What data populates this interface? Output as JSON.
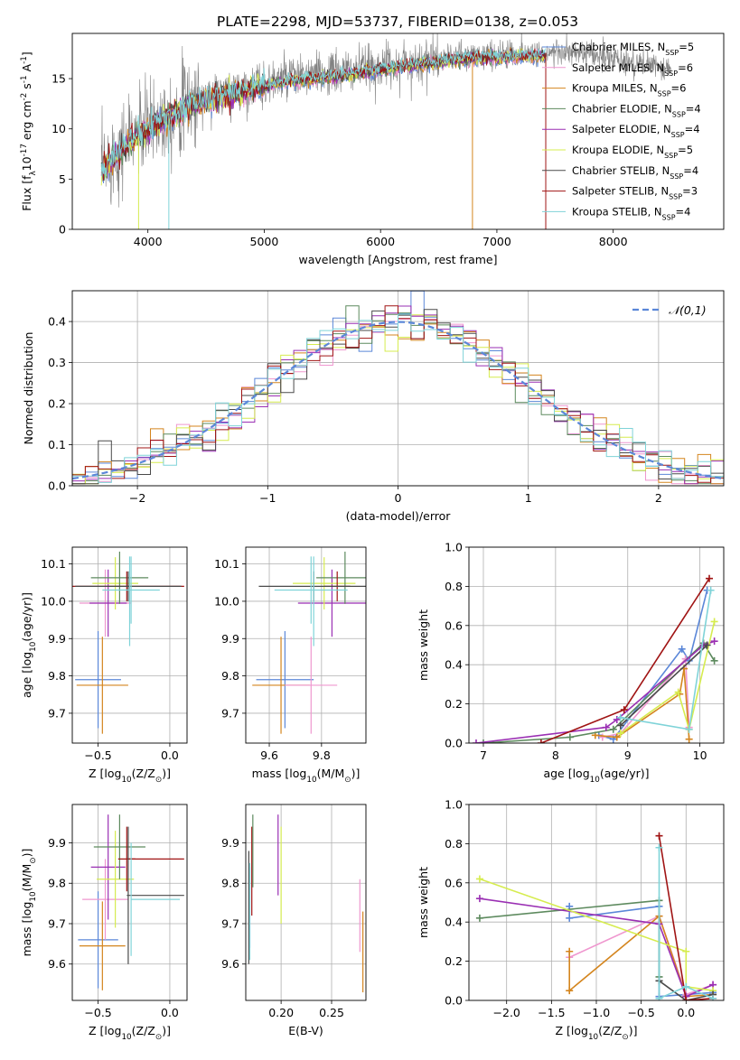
{
  "figure": {
    "title": "PLATE=2298, MJD=53737, FIBERID=0138, z=0.053"
  },
  "series_styles": [
    {
      "name": "Chabrier MILES",
      "label": "Chabrier MILES, N_{SSP}=5",
      "color": "#5b87d8"
    },
    {
      "name": "Salpeter MILES",
      "label": "Salpeter MILES, N_{SSP}=6",
      "color": "#ef97cf"
    },
    {
      "name": "Kroupa MILES",
      "label": "Kroupa MILES, N_{SSP}=6",
      "color": "#d4851e"
    },
    {
      "name": "Chabrier ELODIE",
      "label": "Chabrier ELODIE, N_{SSP}=4",
      "color": "#5d8a5e"
    },
    {
      "name": "Salpeter ELODIE",
      "label": "Salpeter ELODIE, N_{SSP}=4",
      "color": "#9a2fb3"
    },
    {
      "name": "Kroupa ELODIE",
      "label": "Kroupa ELODIE, N_{SSP}=5",
      "color": "#d6ec4f"
    },
    {
      "name": "Chabrier STELIB",
      "label": "Chabrier STELIB, N_{SSP}=4",
      "color": "#4a4a4a"
    },
    {
      "name": "Salpeter STELIB",
      "label": "Salpeter STELIB, N_{SSP}=3",
      "color": "#a01414"
    },
    {
      "name": "Kroupa STELIB",
      "label": "Kroupa STELIB, N_{SSP}=4",
      "color": "#7fd3d8"
    }
  ],
  "chart_data": [
    {
      "id": "spectrum",
      "type": "line",
      "xlabel": "wavelength [Angstrom, rest frame]",
      "ylabel": "Flux [f_λ10^{-17} erg cm^{-2} s^{-1} A^{-1}]",
      "xlim": [
        3350,
        8950
      ],
      "ylim": [
        0,
        19.5
      ],
      "xticks": [
        4000,
        5000,
        6000,
        7000,
        8000
      ],
      "yticks": [
        0,
        5,
        10,
        15
      ],
      "data_series": {
        "name": "data",
        "color": "#808080",
        "x_range": [
          3600,
          8500
        ],
        "continuum": [
          [
            3600,
            6
          ],
          [
            3700,
            7.5
          ],
          [
            3900,
            9.5
          ],
          [
            4100,
            11
          ],
          [
            4400,
            12.8
          ],
          [
            4800,
            14
          ],
          [
            5200,
            15
          ],
          [
            5600,
            15.5
          ],
          [
            6000,
            16.2
          ],
          [
            6400,
            16.8
          ],
          [
            6800,
            17.3
          ],
          [
            7200,
            17.5
          ],
          [
            7600,
            17.6
          ],
          [
            8000,
            17
          ],
          [
            8300,
            16.3
          ],
          [
            8500,
            15.8
          ]
        ]
      },
      "model_x_range": [
        3600,
        7420
      ],
      "legend_position": "upper right",
      "grid": false
    },
    {
      "id": "residuals",
      "type": "histogram",
      "xlabel": "(data-model)/error",
      "ylabel": "Normed distribution",
      "xlim": [
        -2.5,
        2.5
      ],
      "ylim": [
        0,
        0.475
      ],
      "xticks": [
        -2,
        -1,
        0,
        1,
        2
      ],
      "yticks": [
        0.0,
        0.1,
        0.2,
        0.3,
        0.4
      ],
      "bin_width": 0.1,
      "reference": {
        "label": "𝒩(0,1)",
        "mean": 0,
        "std": 1,
        "color": "#5b87d8"
      },
      "legend_position": "upper right",
      "grid": true
    },
    {
      "id": "z-age",
      "type": "errorbar",
      "xlabel": "Z [log_{10}(Z/Z_⊙)]",
      "ylabel": "age  [log_{10}(age/yr)]",
      "xlim": [
        -0.68,
        0.12
      ],
      "ylim": [
        9.62,
        10.145
      ],
      "xticks": [
        -0.5,
        0.0
      ],
      "yticks": [
        9.7,
        9.8,
        9.9,
        10.0,
        10.1
      ],
      "points": [
        {
          "series": "Chabrier MILES",
          "x": -0.5,
          "xerr": 0.16,
          "y": 9.79,
          "yerr": 0.13
        },
        {
          "series": "Kroupa MILES",
          "x": -0.47,
          "xerr": 0.18,
          "y": 9.775,
          "yerr": 0.13
        },
        {
          "series": "Salpeter MILES",
          "x": -0.45,
          "xerr": 0.18,
          "y": 9.995,
          "yerr": 0.09
        },
        {
          "series": "Salpeter ELODIE",
          "x": -0.43,
          "xerr": 0.13,
          "y": 9.995,
          "yerr": 0.09
        },
        {
          "series": "Kroupa ELODIE",
          "x": -0.38,
          "xerr": 0.16,
          "y": 10.048,
          "yerr": 0.07
        },
        {
          "series": "Chabrier ELODIE",
          "x": -0.35,
          "xerr": 0.2,
          "y": 10.063,
          "yerr": 0.07
        },
        {
          "series": "Salpeter STELIB",
          "x": -0.3,
          "xerr": 0.4,
          "y": 10.04,
          "yerr": 0.04
        },
        {
          "series": "Chabrier STELIB",
          "x": -0.29,
          "xerr": 0.37,
          "y": 10.04,
          "yerr": 0.04
        },
        {
          "series": "Kroupa STELIB",
          "x": -0.27,
          "xerr": 0.2,
          "y": 10.03,
          "yerr": 0.09
        },
        {
          "series": "Kroupa STELIB",
          "x": -0.28,
          "xerr": 0.0,
          "y": 10.0,
          "yerr": 0.12
        }
      ],
      "grid": true
    },
    {
      "id": "mass-age",
      "type": "errorbar",
      "xlabel": "mass [log_{10}(M/M_⊙)]",
      "ylabel": "",
      "xlim": [
        9.51,
        9.97
      ],
      "ylim": [
        9.62,
        10.145
      ],
      "xticks": [
        9.6,
        9.8
      ],
      "yticks": [
        9.7,
        9.8,
        9.9,
        10.0,
        10.1
      ],
      "points": [
        {
          "series": "Chabrier MILES",
          "x": 9.66,
          "xerr": 0.11,
          "y": 9.79,
          "yerr": 0.13
        },
        {
          "series": "Kroupa MILES",
          "x": 9.645,
          "xerr": 0.11,
          "y": 9.775,
          "yerr": 0.13
        },
        {
          "series": "Salpeter MILES",
          "x": 9.76,
          "xerr": 0.1,
          "y": 9.775,
          "yerr": 0.13
        },
        {
          "series": "Salpeter ELODIE",
          "x": 9.84,
          "xerr": 0.13,
          "y": 9.995,
          "yerr": 0.09
        },
        {
          "series": "Kroupa ELODIE",
          "x": 9.81,
          "xerr": 0.12,
          "y": 10.048,
          "yerr": 0.07
        },
        {
          "series": "Chabrier ELODIE",
          "x": 9.89,
          "xerr": 0.11,
          "y": 10.063,
          "yerr": 0.07
        },
        {
          "series": "Salpeter STELIB",
          "x": 9.86,
          "xerr": 0.05,
          "y": 10.04,
          "yerr": 0.04
        },
        {
          "series": "Chabrier STELIB",
          "x": 9.77,
          "xerr": 0.21,
          "y": 10.04,
          "yerr": 0.04
        },
        {
          "series": "Kroupa STELIB",
          "x": 9.76,
          "xerr": 0.14,
          "y": 10.03,
          "yerr": 0.09
        },
        {
          "series": "Kroupa STELIB",
          "x": 9.77,
          "xerr": 0.0,
          "y": 10.0,
          "yerr": 0.12
        }
      ],
      "grid": true
    },
    {
      "id": "weights-age",
      "type": "line",
      "xlabel": "age  [log_{10}(age/yr)]",
      "ylabel": "mass weight",
      "xlim": [
        6.8,
        10.33
      ],
      "ylim": [
        0,
        1.0
      ],
      "xticks": [
        7,
        8,
        9,
        10
      ],
      "yticks": [
        0.0,
        0.2,
        0.4,
        0.6,
        0.8,
        1.0
      ],
      "series": [
        {
          "name": "Chabrier MILES",
          "points": [
            [
              8.6,
              0.04
            ],
            [
              8.8,
              0.02
            ],
            [
              9.75,
              0.48
            ],
            [
              9.85,
              0.42
            ],
            [
              10.1,
              0.78
            ]
          ]
        },
        {
          "name": "Salpeter MILES",
          "points": [
            [
              8.65,
              0.03
            ],
            [
              8.9,
              0.05
            ],
            [
              9.8,
              0.43
            ],
            [
              9.85,
              0.08
            ]
          ]
        },
        {
          "name": "Kroupa MILES",
          "points": [
            [
              8.55,
              0.04
            ],
            [
              8.85,
              0.03
            ],
            [
              9.72,
              0.25
            ],
            [
              9.78,
              0.38
            ],
            [
              9.85,
              0.02
            ]
          ]
        },
        {
          "name": "Chabrier ELODIE",
          "points": [
            [
              7.0,
              0.0
            ],
            [
              8.2,
              0.03
            ],
            [
              8.8,
              0.07
            ],
            [
              10.05,
              0.51
            ],
            [
              10.2,
              0.42
            ]
          ]
        },
        {
          "name": "Salpeter ELODIE",
          "points": [
            [
              6.9,
              0.0
            ],
            [
              8.7,
              0.08
            ],
            [
              8.85,
              0.12
            ],
            [
              10.05,
              0.5
            ],
            [
              10.2,
              0.52
            ]
          ]
        },
        {
          "name": "Kroupa ELODIE",
          "points": [
            [
              8.9,
              0.05
            ],
            [
              9.7,
              0.26
            ],
            [
              9.85,
              0.07
            ],
            [
              10.2,
              0.62
            ]
          ]
        },
        {
          "name": "Chabrier STELIB",
          "points": [
            [
              8.9,
              0.09
            ],
            [
              10.1,
              0.5
            ]
          ]
        },
        {
          "name": "Salpeter STELIB",
          "points": [
            [
              7.8,
              0.0
            ],
            [
              8.95,
              0.17
            ],
            [
              10.13,
              0.84
            ]
          ]
        },
        {
          "name": "Kroupa STELIB",
          "points": [
            [
              8.9,
              0.13
            ],
            [
              9.85,
              0.07
            ],
            [
              10.15,
              0.78
            ]
          ]
        }
      ],
      "grid": true
    },
    {
      "id": "z-mass",
      "type": "errorbar",
      "xlabel": "Z [log_{10}(Z/Z_⊙)]",
      "ylabel": "mass [log_{10}(M/M_⊙)]",
      "xlim": [
        -0.68,
        0.12
      ],
      "ylim": [
        9.51,
        9.995
      ],
      "xticks": [
        -0.5,
        0.0
      ],
      "yticks": [
        9.6,
        9.7,
        9.8,
        9.9
      ],
      "points": [
        {
          "series": "Chabrier MILES",
          "x": -0.5,
          "xerr": 0.14,
          "y": 9.66,
          "yerr": 0.12
        },
        {
          "series": "Kroupa MILES",
          "x": -0.47,
          "xerr": 0.16,
          "y": 9.645,
          "yerr": 0.11
        },
        {
          "series": "Salpeter MILES",
          "x": -0.45,
          "xerr": 0.16,
          "y": 9.76,
          "yerr": 0.1
        },
        {
          "series": "Salpeter ELODIE",
          "x": -0.43,
          "xerr": 0.12,
          "y": 9.84,
          "yerr": 0.13
        },
        {
          "series": "Kroupa ELODIE",
          "x": -0.38,
          "xerr": 0.13,
          "y": 9.81,
          "yerr": 0.12
        },
        {
          "series": "Chabrier ELODIE",
          "x": -0.35,
          "xerr": 0.18,
          "y": 9.89,
          "yerr": 0.08
        },
        {
          "series": "Salpeter STELIB",
          "x": -0.3,
          "xerr": 0.06,
          "y": 9.86,
          "yerr": 0.08
        },
        {
          "series": "Salpeter STELIB",
          "x": -0.1,
          "xerr": 0.2,
          "y": 9.86,
          "yerr": 0.0
        },
        {
          "series": "Chabrier STELIB",
          "x": -0.29,
          "xerr": 0.0,
          "y": 9.77,
          "yerr": 0.17
        },
        {
          "series": "Chabrier STELIB",
          "x": -0.1,
          "xerr": 0.2,
          "y": 9.77,
          "yerr": 0.0
        },
        {
          "series": "Kroupa STELIB",
          "x": -0.27,
          "xerr": 0.0,
          "y": 9.76,
          "yerr": 0.14
        },
        {
          "series": "Kroupa STELIB",
          "x": -0.1,
          "xerr": 0.17,
          "y": 9.76,
          "yerr": 0.0
        }
      ],
      "grid": true
    },
    {
      "id": "ebv-mass",
      "type": "errorbar",
      "xlabel": "E(B-V)",
      "ylabel": "",
      "xlim": [
        0.165,
        0.284
      ],
      "ylim": [
        9.51,
        9.995
      ],
      "xticks": [
        0.2,
        0.25
      ],
      "yticks": [
        9.6,
        9.7,
        9.8,
        9.9
      ],
      "points": [
        {
          "series": "Chabrier MILES",
          "x": 0.169,
          "xerr": 0,
          "y": 9.74,
          "yerr": 0.1
        },
        {
          "series": "Chabrier STELIB",
          "x": 0.168,
          "xerr": 0,
          "y": 9.74,
          "yerr": 0.14
        },
        {
          "series": "Kroupa STELIB",
          "x": 0.169,
          "xerr": 0,
          "y": 9.73,
          "yerr": 0.12
        },
        {
          "series": "Salpeter STELIB",
          "x": 0.171,
          "xerr": 0,
          "y": 9.83,
          "yerr": 0.11
        },
        {
          "series": "Chabrier ELODIE",
          "x": 0.172,
          "xerr": 0,
          "y": 9.88,
          "yerr": 0.09
        },
        {
          "series": "Salpeter ELODIE",
          "x": 0.197,
          "xerr": 0,
          "y": 9.87,
          "yerr": 0.1
        },
        {
          "series": "Kroupa ELODIE",
          "x": 0.2,
          "xerr": 0,
          "y": 9.82,
          "yerr": 0.12
        },
        {
          "series": "Salpeter MILES",
          "x": 0.278,
          "xerr": 0,
          "y": 9.72,
          "yerr": 0.09
        },
        {
          "series": "Kroupa MILES",
          "x": 0.281,
          "xerr": 0,
          "y": 9.63,
          "yerr": 0.1
        }
      ],
      "grid": true
    },
    {
      "id": "weights-z",
      "type": "line",
      "xlabel": "Z [log_{10}(Z/Z_⊙)]",
      "ylabel": "mass weight",
      "xlim": [
        -2.42,
        0.42
      ],
      "ylim": [
        0,
        1.0
      ],
      "xticks": [
        -2.0,
        -1.5,
        -1.0,
        -0.5,
        0.0
      ],
      "yticks": [
        0.0,
        0.2,
        0.4,
        0.6,
        0.8,
        1.0
      ],
      "series": [
        {
          "name": "Chabrier MILES",
          "points": [
            [
              -1.3,
              0.48
            ],
            [
              -1.3,
              0.42
            ],
            [
              -0.3,
              0.48
            ],
            [
              -0.3,
              0.02
            ],
            [
              0.3,
              0.04
            ]
          ]
        },
        {
          "name": "Salpeter MILES",
          "points": [
            [
              -1.3,
              0.22
            ],
            [
              -0.3,
              0.43
            ],
            [
              0.0,
              0.03
            ],
            [
              0.3,
              0.08
            ]
          ]
        },
        {
          "name": "Kroupa MILES",
          "points": [
            [
              -1.3,
              0.25
            ],
            [
              -1.3,
              0.05
            ],
            [
              -0.3,
              0.43
            ],
            [
              0.0,
              0.02
            ],
            [
              0.3,
              0.03
            ]
          ]
        },
        {
          "name": "Chabrier ELODIE",
          "points": [
            [
              -2.3,
              0.42
            ],
            [
              -0.3,
              0.51
            ],
            [
              -0.3,
              0.12
            ]
          ]
        },
        {
          "name": "Salpeter ELODIE",
          "points": [
            [
              -2.3,
              0.52
            ],
            [
              -0.3,
              0.39
            ],
            [
              0.0,
              0.02
            ],
            [
              0.3,
              0.08
            ]
          ]
        },
        {
          "name": "Kroupa ELODIE",
          "points": [
            [
              -2.3,
              0.62
            ],
            [
              0.0,
              0.25
            ],
            [
              0.0,
              0.07
            ],
            [
              0.3,
              0.05
            ]
          ]
        },
        {
          "name": "Chabrier STELIB",
          "points": [
            [
              -0.3,
              0.1
            ],
            [
              0.0,
              0.0
            ],
            [
              0.3,
              0.03
            ]
          ]
        },
        {
          "name": "Salpeter STELIB",
          "points": [
            [
              -0.3,
              0.84
            ],
            [
              0.0,
              0.0
            ],
            [
              0.3,
              0.01
            ]
          ]
        },
        {
          "name": "Kroupa STELIB",
          "points": [
            [
              -0.3,
              0.78
            ],
            [
              -0.3,
              0.01
            ],
            [
              0.0,
              0.07
            ],
            [
              0.3,
              0.01
            ]
          ]
        }
      ],
      "grid": true
    }
  ]
}
